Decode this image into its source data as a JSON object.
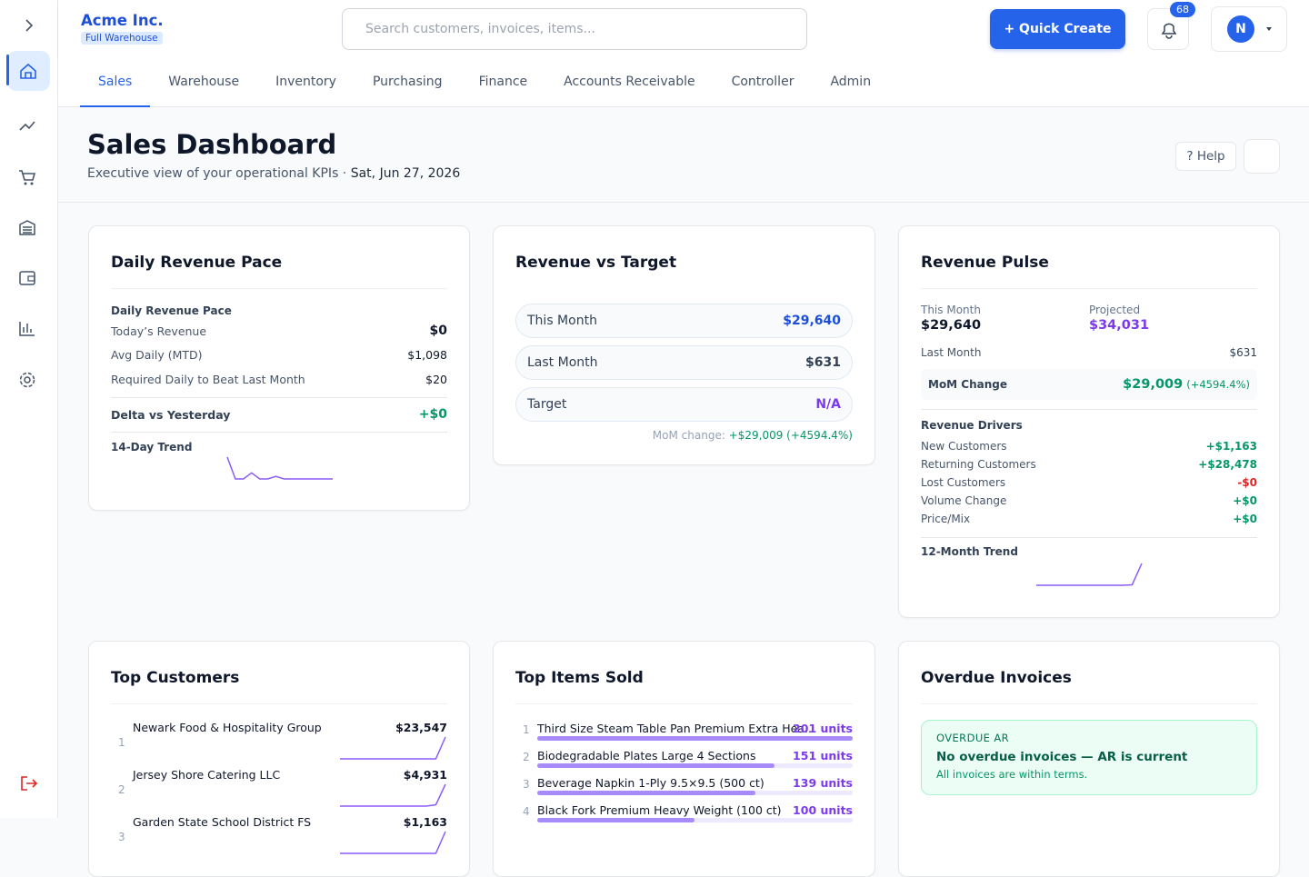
{
  "header": {
    "company": "Acme Inc.",
    "badge": "Full Warehouse",
    "search_placeholder": "Search customers, invoices, items...",
    "quick_create": "+ Quick Create",
    "notifications": "68",
    "avatar": "N"
  },
  "tabs": [
    "Sales",
    "Warehouse",
    "Inventory",
    "Purchasing",
    "Finance",
    "Accounts Receivable",
    "Controller",
    "Admin"
  ],
  "active_tab": 0,
  "page": {
    "title": "Sales Dashboard",
    "subtitle": "Executive view of your operational KPIs · ",
    "date": "Sat, Jun 27, 2026",
    "help": "? Help"
  },
  "daily_pace": {
    "title": "Daily Revenue Pace",
    "section": "Daily Revenue Pace",
    "rows": [
      {
        "label": "Today’s Revenue",
        "value": "$0"
      },
      {
        "label": "Avg Daily (MTD)",
        "value": "$1,098"
      },
      {
        "label": "Required Daily to Beat Last Month",
        "value": "$20"
      }
    ],
    "delta_label": "Delta vs Yesterday",
    "delta_value": "+$0",
    "trend_label": "14-Day Trend",
    "trend": [
      1000,
      0,
      0,
      280,
      0,
      0,
      120,
      0,
      0,
      0,
      0,
      0,
      0,
      0
    ],
    "trend_color": "#8b5cf6"
  },
  "revenue_target": {
    "title": "Revenue vs Target",
    "rows": [
      {
        "label": "This Month",
        "value": "$29,640",
        "color": "#1d4ed8"
      },
      {
        "label": "Last Month",
        "value": "$631",
        "color": "#334155"
      },
      {
        "label": "Target",
        "value": "N/A",
        "color": "#7c3aed"
      }
    ],
    "footer_label": "MoM change: ",
    "footer_value": "+$29,009 (+4594.4%)"
  },
  "revenue_pulse": {
    "title": "Revenue Pulse",
    "this_month_label": "This Month",
    "this_month_value": "$29,640",
    "projected_label": "Projected",
    "projected_value": "$34,031",
    "last_month_label": "Last Month",
    "last_month_value": "$631",
    "mom_label": "MoM Change",
    "mom_value": "$29,009",
    "mom_pct": "(+4594.4%)",
    "drivers_title": "Revenue Drivers",
    "drivers": [
      {
        "label": "New Customers",
        "value": "+$1,163",
        "color": "#059669"
      },
      {
        "label": "Returning Customers",
        "value": "+$28,478",
        "color": "#059669"
      },
      {
        "label": "Lost Customers",
        "value": "-$0",
        "color": "#dc2626"
      },
      {
        "label": "Volume Change",
        "value": "+$0",
        "color": "#059669"
      },
      {
        "label": "Price/Mix",
        "value": "+$0",
        "color": "#059669"
      }
    ],
    "trend_label": "12-Month Trend",
    "trend": [
      0,
      0,
      0,
      0,
      0,
      0,
      0,
      0,
      0,
      0,
      631,
      29640
    ],
    "trend_color": "#8b5cf6"
  },
  "top_customers": {
    "title": "Top Customers",
    "rows": [
      {
        "rank": "1",
        "name": "Newark Food & Hospitality Group",
        "value": "$23,547",
        "trend": [
          0,
          0,
          0,
          0,
          0,
          0,
          0,
          0,
          0,
          0,
          0,
          23547
        ]
      },
      {
        "rank": "2",
        "name": "Jersey Shore Catering LLC",
        "value": "$4,931",
        "trend": [
          0,
          0,
          0,
          0,
          0,
          0,
          0,
          0,
          0,
          0,
          300,
          4931
        ]
      },
      {
        "rank": "3",
        "name": "Garden State School District FS",
        "value": "$1,163",
        "trend": [
          0,
          0,
          0,
          0,
          0,
          0,
          0,
          0,
          0,
          0,
          0,
          1163
        ]
      }
    ],
    "trend_color": "#8b5cf6"
  },
  "top_items": {
    "title": "Top Items Sold",
    "rows": [
      {
        "rank": "1",
        "name": "Third Size Steam Table Pan Premium Extra Hea...",
        "units": 201,
        "units_label": "201 units"
      },
      {
        "rank": "2",
        "name": "Biodegradable Plates Large 4 Sections",
        "units": 151,
        "units_label": "151 units"
      },
      {
        "rank": "3",
        "name": "Beverage Napkin 1-Ply 9.5×9.5 (500 ct)",
        "units": 139,
        "units_label": "139 units"
      },
      {
        "rank": "4",
        "name": "Black Fork Premium Heavy Weight (100 ct)",
        "units": 100,
        "units_label": "100 units"
      }
    ],
    "bar_color": "#a78bfa"
  },
  "overdue": {
    "title": "Overdue Invoices",
    "tag": "OVERDUE AR",
    "headline": "No overdue invoices — AR is current",
    "note": "All invoices are within terms."
  }
}
